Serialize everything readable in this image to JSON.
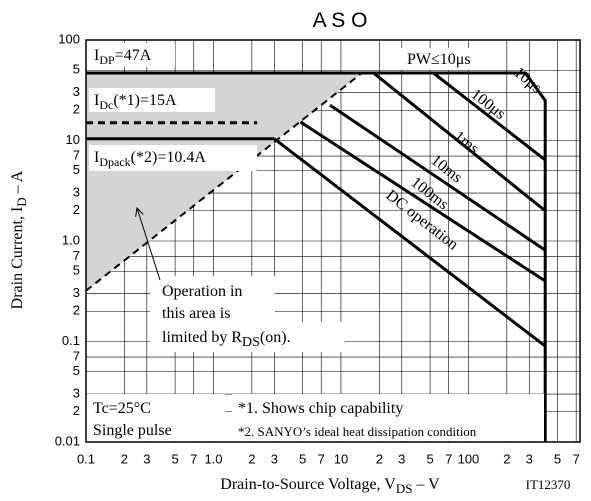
{
  "chart_data": {
    "type": "line",
    "title": "A S O",
    "x_label": {
      "text": "Drain-to-Source Voltage, V",
      "sub": "DS",
      "after": " – V"
    },
    "y_label": {
      "text": "Drain Current, I",
      "sub": "D",
      "after": " – A"
    },
    "code": "IT12370",
    "xscale": "log",
    "yscale": "log",
    "grid": true,
    "xlim": [
      0.1,
      750
    ],
    "ylim": [
      0.01,
      100
    ],
    "xticks": [
      0.1,
      {
        "value": 0.2,
        "label": "2"
      },
      {
        "value": 0.3,
        "label": "3"
      },
      {
        "value": 0.5,
        "label": "5"
      },
      {
        "value": 0.7,
        "label": "7"
      },
      {
        "value": 1,
        "label": "1.0"
      },
      2,
      3,
      5,
      7,
      10,
      {
        "value": 20,
        "label": "2"
      },
      {
        "value": 30,
        "label": "3"
      },
      {
        "value": 50,
        "label": "5"
      },
      {
        "value": 70,
        "label": "7"
      },
      100,
      {
        "value": 200,
        "label": "2"
      },
      {
        "value": 300,
        "label": "3"
      },
      {
        "value": 500,
        "label": "5"
      },
      {
        "value": 700,
        "label": "7"
      }
    ],
    "yticks": [
      0.01,
      {
        "value": 0.02,
        "label": "2"
      },
      {
        "value": 0.03,
        "label": "3"
      },
      {
        "value": 0.05,
        "label": "5"
      },
      {
        "value": 0.07,
        "label": "7"
      },
      0.1,
      {
        "value": 0.2,
        "label": "2"
      },
      {
        "value": 0.3,
        "label": "3"
      },
      {
        "value": 0.5,
        "label": "5"
      },
      {
        "value": 0.7,
        "label": "7"
      },
      {
        "value": 1,
        "label": "1.0"
      },
      2,
      3,
      5,
      7,
      10,
      {
        "value": 20,
        "label": "2"
      },
      {
        "value": 30,
        "label": "3"
      },
      {
        "value": 50,
        "label": "5"
      },
      100
    ],
    "series": [
      {
        "color": "#000000",
        "width": 3,
        "x": [
          0.1,
          280,
          400,
          400
        ],
        "values": [
          47,
          47,
          25,
          0.01
        ]
      },
      {
        "color": "#000000",
        "width": 3,
        "x": [
          53,
          400
        ],
        "values": [
          47,
          6.4
        ]
      },
      {
        "color": "#000000",
        "width": 3,
        "x": [
          18,
          400
        ],
        "values": [
          47,
          2
        ]
      },
      {
        "color": "#000000",
        "width": 3,
        "x": [
          8.2,
          400
        ],
        "values": [
          22.5,
          0.81
        ]
      },
      {
        "color": "#000000",
        "width": 3,
        "x": [
          4.8,
          400
        ],
        "values": [
          15.3,
          0.4
        ]
      },
      {
        "color": "#000000",
        "width": 3,
        "x": [
          3.0,
          400
        ],
        "values": [
          10.4,
          0.09
        ]
      },
      {
        "color": "#000000",
        "width": 3,
        "x": [
          0.1,
          3.0
        ],
        "values": [
          10.4,
          10.4
        ]
      },
      {
        "color": "#000000",
        "width": 3,
        "dash": true,
        "x": [
          0.1,
          2.2
        ],
        "values": [
          15,
          15
        ]
      },
      {
        "color": "#000000",
        "width": 2,
        "dash": true,
        "fill": "#d4d4d4",
        "x": [
          0.1,
          14.6
        ],
        "values": [
          0.32,
          47
        ]
      }
    ],
    "annotations": {
      "idp": {
        "text": "I",
        "sub": "DP",
        "after": "=47A"
      },
      "idc": {
        "text": "I",
        "sub": "Dc",
        "after": "(*1)=15A"
      },
      "idpack": {
        "text": "I",
        "sub": "Dpack",
        "after": "(*2)=10.4A"
      },
      "pw": "PW≤10μs",
      "curves": [
        "10μs",
        "100μs",
        "1ms",
        "10ms",
        "100ms",
        "DC operation"
      ],
      "ron": [
        "Operation in",
        "this area is",
        {
          "text": "limited by R",
          "sub": "DS",
          "after": "(on)."
        }
      ],
      "conditions": [
        "Tc=25°C",
        "Single pulse"
      ],
      "notes": [
        "*1. Shows chip capability",
        "*2. SANYO’s ideal heat dissipation condition"
      ]
    }
  }
}
